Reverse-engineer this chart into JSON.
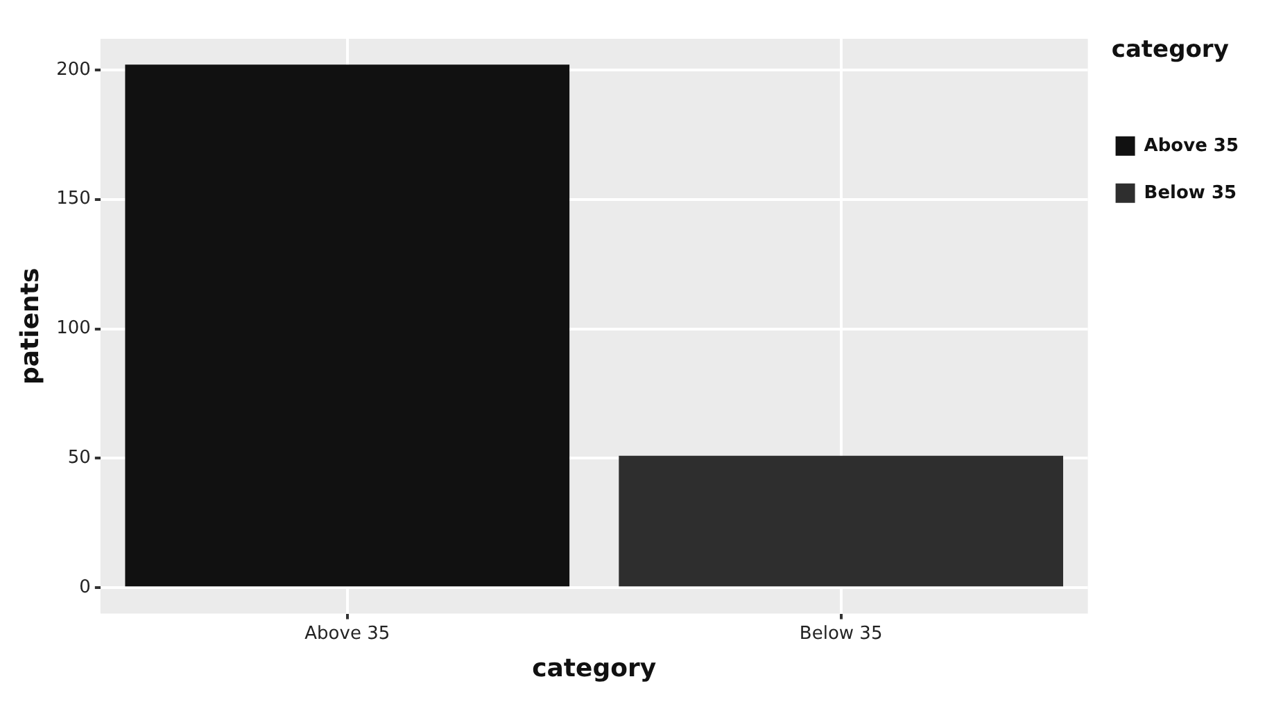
{
  "chart_data": {
    "type": "bar",
    "xlabel": "category",
    "ylabel": "patients",
    "legend_title": "category",
    "categories": [
      "Above 35",
      "Below 35"
    ],
    "series": [
      {
        "name": "Above 35",
        "color": "#111111",
        "values": [
          202,
          null
        ]
      },
      {
        "name": "Below 35",
        "color": "#2e2e2e",
        "values": [
          null,
          51
        ]
      }
    ],
    "ylim": [
      -10,
      212
    ],
    "yticks": [
      0,
      50,
      100,
      150,
      200
    ],
    "grid": true,
    "legend": "right"
  }
}
